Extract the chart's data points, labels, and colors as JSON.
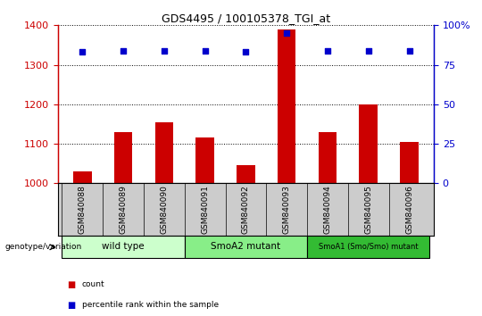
{
  "title": "GDS4495 / 100105378_TGI_at",
  "samples": [
    "GSM840088",
    "GSM840089",
    "GSM840090",
    "GSM840091",
    "GSM840092",
    "GSM840093",
    "GSM840094",
    "GSM840095",
    "GSM840096"
  ],
  "counts": [
    1030,
    1130,
    1155,
    1115,
    1045,
    1390,
    1130,
    1200,
    1105
  ],
  "percentiles": [
    83,
    84,
    84,
    84,
    83,
    95,
    84,
    84,
    84
  ],
  "ylim_left": [
    1000,
    1400
  ],
  "ylim_right": [
    0,
    100
  ],
  "yticks_left": [
    1000,
    1100,
    1200,
    1300,
    1400
  ],
  "yticks_right": [
    0,
    25,
    50,
    75,
    100
  ],
  "ytick_right_labels": [
    "0",
    "25",
    "50",
    "75",
    "100%"
  ],
  "groups": [
    {
      "label": "wild type",
      "start": 0,
      "end": 3,
      "color": "#ccffcc"
    },
    {
      "label": "SmoA2 mutant",
      "start": 3,
      "end": 6,
      "color": "#88ee88"
    },
    {
      "label": "SmoA1 (Smo/Smo) mutant",
      "start": 6,
      "end": 9,
      "color": "#33bb33"
    }
  ],
  "bar_color": "#cc0000",
  "dot_color": "#0000cc",
  "bar_width": 0.45,
  "left_axis_color": "#cc0000",
  "right_axis_color": "#0000cc",
  "tick_label_bg": "#cccccc",
  "group_label": "genotype/variation",
  "legend": [
    {
      "color": "#cc0000",
      "label": "count"
    },
    {
      "color": "#0000cc",
      "label": "percentile rank within the sample"
    }
  ]
}
